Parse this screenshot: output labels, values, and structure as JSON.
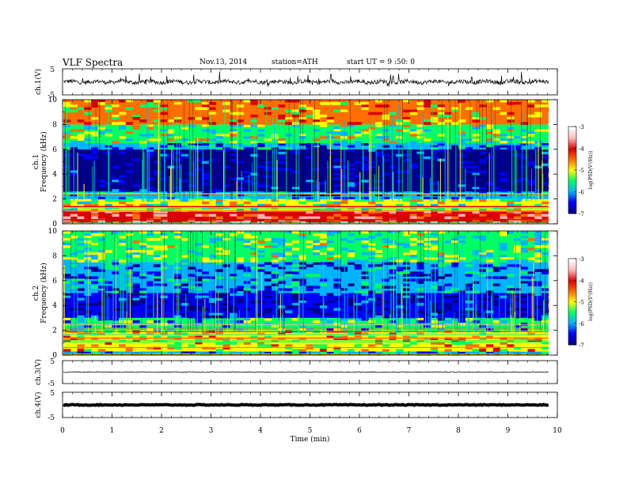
{
  "header": {
    "title": "VLF Spectra",
    "date": "Nov.13, 2014",
    "station": "station=ATH",
    "start": "start UT = 9 :50: 0"
  },
  "colors": {
    "waveform": "#000000",
    "colormap": [
      "#00008c",
      "#0000ff",
      "#00b4ff",
      "#00ff64",
      "#ffff00",
      "#ff6e00",
      "#dc0000",
      "#ffb4b4",
      "#ffffff"
    ]
  },
  "chart_data": [
    {
      "type": "line",
      "panel": "ch1",
      "ylabel": "ch.1(V)",
      "ylim": [
        -5,
        5
      ],
      "yticks": [
        "5",
        "-5"
      ],
      "signal": "noisy waveform centred near 0 V with spikes up to about 5 V"
    },
    {
      "type": "heatmap",
      "panel": "ch1-spectrogram",
      "ylabel_channel": "ch.1",
      "ylabel": "Frequency (kHz)",
      "ylim": [
        0,
        10
      ],
      "yticks": [
        "0",
        "2",
        "4",
        "6",
        "8",
        "10"
      ],
      "colorbar": {
        "label": "log(PSD(V²/Hz))",
        "ticks": [
          "-3",
          "-4",
          "-5",
          "-6",
          "-7"
        ],
        "range": [
          -7,
          -3
        ]
      },
      "bands_khz": [
        {
          "from": 0.0,
          "to": 1.0,
          "level": -3.6
        },
        {
          "from": 1.0,
          "to": 2.0,
          "level": -5.0
        },
        {
          "from": 2.0,
          "to": 2.6,
          "level": -5.9
        },
        {
          "from": 2.6,
          "to": 6.0,
          "level": -6.7
        },
        {
          "from": 6.0,
          "to": 6.5,
          "level": -5.9
        },
        {
          "from": 6.5,
          "to": 8.0,
          "level": -5.1
        },
        {
          "from": 8.0,
          "to": 10.0,
          "level": -4.4
        }
      ]
    },
    {
      "type": "heatmap",
      "panel": "ch2-spectrogram",
      "ylabel_channel": "ch.2",
      "ylabel": "Frequency (kHz)",
      "ylim": [
        0,
        10
      ],
      "yticks": [
        "0",
        "2",
        "4",
        "6",
        "8",
        "10"
      ],
      "colorbar": {
        "label": "log(PSD(V²/Hz))",
        "ticks": [
          "-3",
          "-4",
          "-5",
          "-6",
          "-7"
        ],
        "range": [
          -7,
          -3
        ]
      },
      "bands_khz": [
        {
          "from": 0.0,
          "to": 0.3,
          "level": -5.9
        },
        {
          "from": 0.3,
          "to": 2.0,
          "level": -4.6
        },
        {
          "from": 2.0,
          "to": 3.0,
          "level": -5.5
        },
        {
          "from": 3.0,
          "to": 5.0,
          "level": -6.5
        },
        {
          "from": 5.0,
          "to": 7.5,
          "level": -6.0
        },
        {
          "from": 7.5,
          "to": 10.0,
          "level": -5.2
        }
      ]
    },
    {
      "type": "line",
      "panel": "ch3",
      "ylabel": "ch.3(V)",
      "ylim": [
        -5,
        5
      ],
      "yticks": [
        "5",
        "-5"
      ],
      "signal": "flat trace near 0 V"
    },
    {
      "type": "line",
      "panel": "ch4",
      "ylabel": "ch.4(V)",
      "ylim": [
        -5,
        5
      ],
      "yticks": [
        "5",
        "-5"
      ],
      "signal": "thick flat trace near 0 V"
    }
  ],
  "xaxis": {
    "label": "Time (min)",
    "xlim": [
      0,
      10
    ],
    "ticks": [
      "0",
      "1",
      "2",
      "3",
      "4",
      "5",
      "6",
      "7",
      "8",
      "9",
      "10"
    ],
    "data_end_min": 9.82
  }
}
